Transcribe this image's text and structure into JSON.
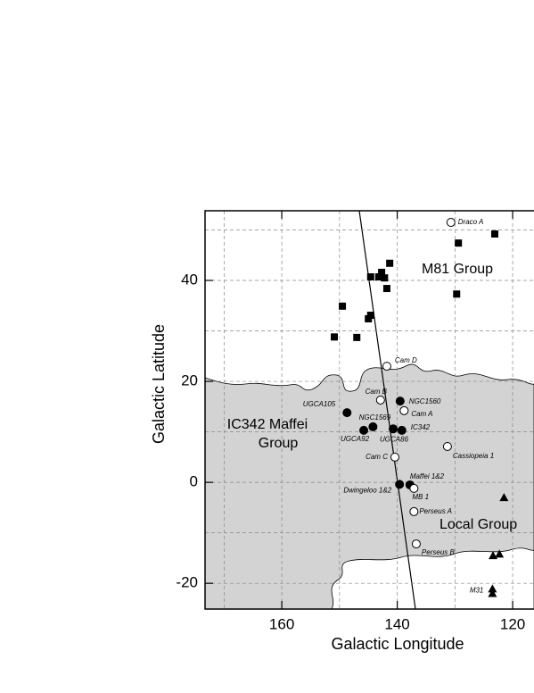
{
  "chart_data": {
    "type": "scatter",
    "x_label": "Galactic Longitude",
    "y_label": "Galactic Latitude",
    "xlim": [
      173.3,
      116.3
    ],
    "ylim": [
      -25.1,
      53.8
    ],
    "xticks": [
      160,
      140,
      120
    ],
    "yticks": [
      40,
      20,
      0,
      -20
    ],
    "x_gridlines": [
      170,
      150,
      130
    ],
    "y_gridlines": [
      50,
      30,
      10,
      -10
    ],
    "grid": true,
    "annotations": [
      "M81 Group",
      "IC342 Maffei",
      "Group",
      "Local Group"
    ],
    "series": [
      {
        "marker": "square",
        "color": "#000000",
        "x": [
          123.1,
          129.4,
          141.3,
          142.7,
          143.2,
          142.2,
          144.6,
          141.8,
          149.5,
          144.6,
          145.0,
          150.9,
          147.0,
          129.7
        ],
        "values": [
          49.2,
          47.4,
          43.4,
          41.6,
          40.7,
          40.5,
          40.7,
          38.4,
          34.9,
          33.1,
          32.4,
          28.8,
          28.7,
          37.3
        ]
      },
      {
        "marker": "filled-circle",
        "color": "#000000",
        "x": [
          148.7,
          139.5,
          144.2,
          145.8,
          140.7,
          139.2,
          137.8
        ],
        "values": [
          13.8,
          16.1,
          11.0,
          10.3,
          10.6,
          10.3,
          -0.5
        ],
        "labels": [
          "UGCA105",
          "NGC1560",
          "NGC1569",
          "UGCA92",
          "UGCA86",
          "IC342",
          "Maffei 1&2"
        ]
      },
      {
        "marker": "half-circle",
        "color": "#000000",
        "x": [
          139.6
        ],
        "values": [
          -0.4
        ],
        "labels": [
          "Dwingeloo 1&2"
        ]
      },
      {
        "marker": "open-circle",
        "color": "#000000",
        "x": [
          130.7,
          141.8,
          142.9,
          138.8,
          131.3,
          140.4,
          137.1,
          137.1,
          136.7
        ],
        "values": [
          51.5,
          23.0,
          16.3,
          14.2,
          7.1,
          5.0,
          -1.2,
          -5.8,
          -12.2
        ],
        "labels": [
          "Draco A",
          "Cam D",
          "Cam B",
          "Cam A",
          "Cassiopeia 1",
          "Cam C",
          "MB 1",
          "Perseus A",
          "Perseus B"
        ]
      },
      {
        "marker": "triangle",
        "color": "#000000",
        "x": [
          121.5,
          123.4,
          122.3,
          123.5,
          123.5
        ],
        "values": [
          -3.0,
          -14.5,
          -14.2,
          -21.1,
          -22.0
        ],
        "labels": [
          null,
          null,
          null,
          "M31",
          null
        ]
      }
    ]
  }
}
